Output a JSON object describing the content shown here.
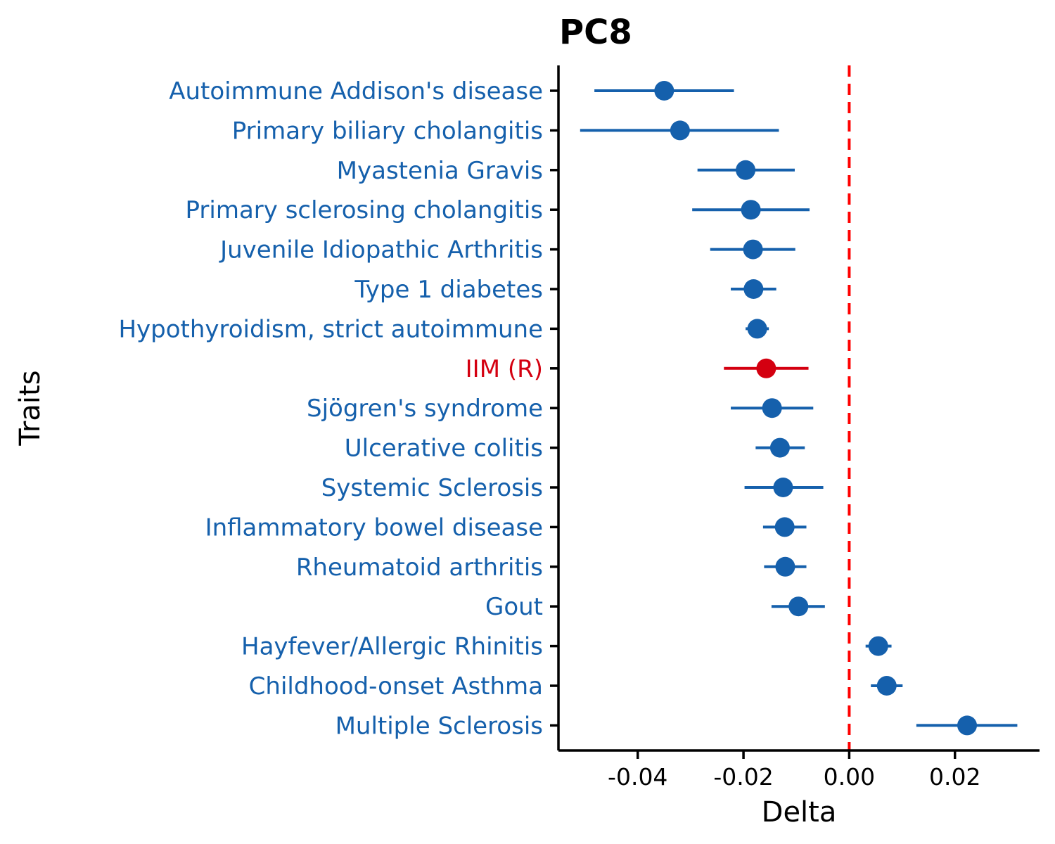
{
  "chart_data": {
    "type": "scatter",
    "subtype": "forest-plot",
    "title": "PC8",
    "xlabel": "Delta",
    "ylabel": "Traits",
    "xlim": [
      -0.055,
      0.036
    ],
    "x_ticks": [
      -0.04,
      -0.02,
      0.0,
      0.02
    ],
    "x_tick_labels": [
      "-0.04",
      "-0.02",
      "0.00",
      "0.02"
    ],
    "reference_line": {
      "x": 0,
      "style": "dashed",
      "color": "#ff0000"
    },
    "grid": false,
    "colors": {
      "default": "#1560ac",
      "highlight": "#d40010"
    },
    "traits": [
      {
        "label": "Autoimmune Addison's disease",
        "delta": -0.035,
        "lower": -0.0482,
        "upper": -0.0218,
        "highlight": false
      },
      {
        "label": "Primary biliary cholangitis",
        "delta": -0.032,
        "lower": -0.0509,
        "upper": -0.0133,
        "highlight": false
      },
      {
        "label": "Myastenia Gravis",
        "delta": -0.0196,
        "lower": -0.0287,
        "upper": -0.0103,
        "highlight": false
      },
      {
        "label": "Primary sclerosing cholangitis",
        "delta": -0.0186,
        "lower": -0.0297,
        "upper": -0.0075,
        "highlight": false
      },
      {
        "label": "Juvenile Idiopathic Arthritis",
        "delta": -0.0182,
        "lower": -0.0263,
        "upper": -0.0102,
        "highlight": false
      },
      {
        "label": "Type 1 diabetes",
        "delta": -0.0181,
        "lower": -0.0224,
        "upper": -0.0138,
        "highlight": false
      },
      {
        "label": "Hypothyroidism, strict autoimmune",
        "delta": -0.0174,
        "lower": -0.0196,
        "upper": -0.0152,
        "highlight": false
      },
      {
        "label": "IIM (R)",
        "delta": -0.0157,
        "lower": -0.0237,
        "upper": -0.0077,
        "highlight": true
      },
      {
        "label": "Sjögren's syndrome",
        "delta": -0.0146,
        "lower": -0.0224,
        "upper": -0.0068,
        "highlight": false
      },
      {
        "label": "Ulcerative colitis",
        "delta": -0.0131,
        "lower": -0.0177,
        "upper": -0.0084,
        "highlight": false
      },
      {
        "label": "Systemic Sclerosis",
        "delta": -0.0125,
        "lower": -0.0198,
        "upper": -0.0049,
        "highlight": false
      },
      {
        "label": "Inflammatory bowel disease",
        "delta": -0.0122,
        "lower": -0.0163,
        "upper": -0.0081,
        "highlight": false
      },
      {
        "label": "Rheumatoid arthritis",
        "delta": -0.0121,
        "lower": -0.0161,
        "upper": -0.0081,
        "highlight": false
      },
      {
        "label": "Gout",
        "delta": -0.0096,
        "lower": -0.0147,
        "upper": -0.0046,
        "highlight": false
      },
      {
        "label": "Hayfever/Allergic Rhinitis",
        "delta": 0.0055,
        "lower": 0.0031,
        "upper": 0.008,
        "highlight": false
      },
      {
        "label": "Childhood-onset Asthma",
        "delta": 0.0071,
        "lower": 0.0041,
        "upper": 0.0101,
        "highlight": false
      },
      {
        "label": "Multiple Sclerosis",
        "delta": 0.0223,
        "lower": 0.0127,
        "upper": 0.0318,
        "highlight": false
      }
    ]
  }
}
